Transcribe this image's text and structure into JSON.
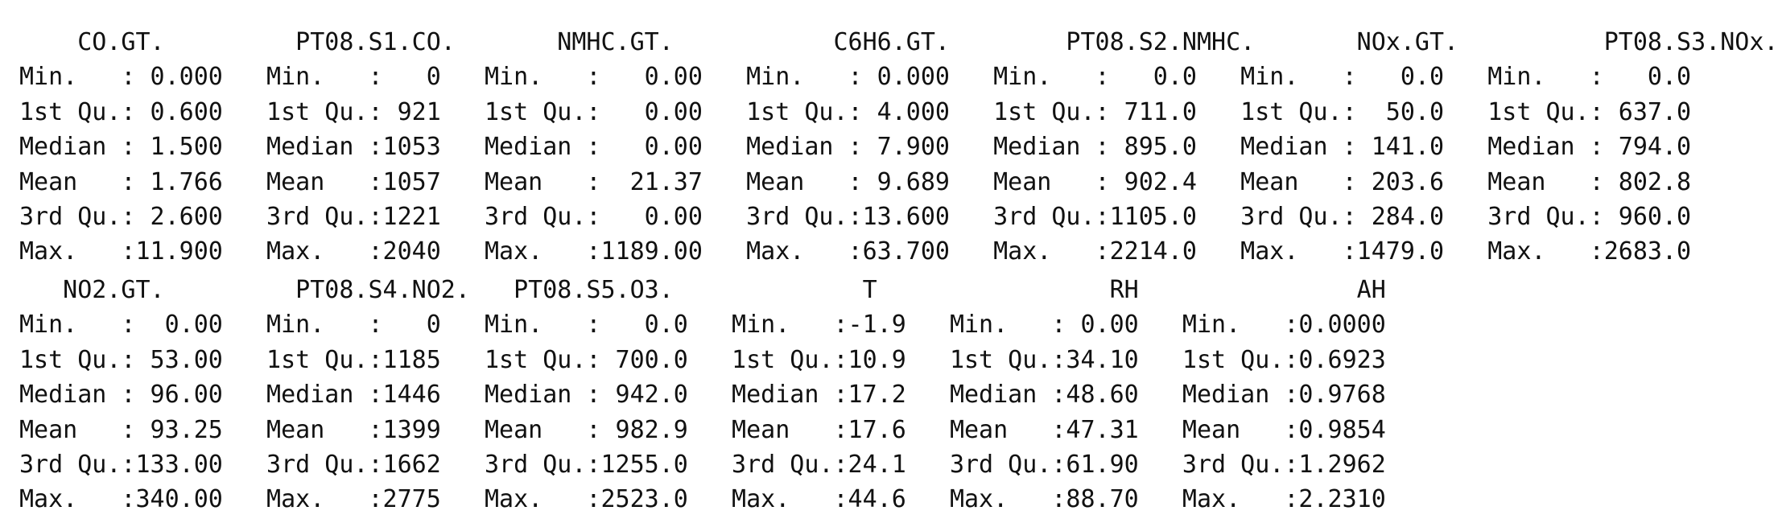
{
  "summary_output": {
    "block1": [
      "    CO.GT.         PT08.S1.CO.       NMHC.GT.           C6H6.GT.        PT08.S2.NMHC.       NOx.GT.          PT08.S3.NOx.",
      "Min.   : 0.000   Min.   :   0   Min.   :   0.00   Min.   : 0.000   Min.   :   0.0   Min.   :   0.0   Min.   :   0.0",
      "1st Qu.: 0.600   1st Qu.: 921   1st Qu.:   0.00   1st Qu.: 4.000   1st Qu.: 711.0   1st Qu.:  50.0   1st Qu.: 637.0",
      "Median : 1.500   Median :1053   Median :   0.00   Median : 7.900   Median : 895.0   Median : 141.0   Median : 794.0",
      "Mean   : 1.766   Mean   :1057   Mean   :  21.37   Mean   : 9.689   Mean   : 902.4   Mean   : 203.6   Mean   : 802.8",
      "3rd Qu.: 2.600   3rd Qu.:1221   3rd Qu.:   0.00   3rd Qu.:13.600   3rd Qu.:1105.0   3rd Qu.: 284.0   3rd Qu.: 960.0",
      "Max.   :11.900   Max.   :2040   Max.   :1189.00   Max.   :63.700   Max.   :2214.0   Max.   :1479.0   Max.   :2683.0"
    ],
    "block2": [
      "   NO2.GT.         PT08.S4.NO2.   PT08.S5.O3.             T                RH               AH",
      "Min.   :  0.00   Min.   :   0   Min.   :   0.0   Min.   :-1.9   Min.   : 0.00   Min.   :0.0000",
      "1st Qu.: 53.00   1st Qu.:1185   1st Qu.: 700.0   1st Qu.:10.9   1st Qu.:34.10   1st Qu.:0.6923",
      "Median : 96.00   Median :1446   Median : 942.0   Median :17.2   Median :48.60   Median :0.9768",
      "Mean   : 93.25   Mean   :1399   Mean   : 982.9   Mean   :17.6   Mean   :47.31   Mean   :0.9854",
      "3rd Qu.:133.00   3rd Qu.:1662   3rd Qu.:1255.0   3rd Qu.:24.1   3rd Qu.:61.90   3rd Qu.:1.2962",
      "Max.   :340.00   Max.   :2775   Max.   :2523.0   Max.   :44.6   Max.   :88.70   Max.   :2.2310"
    ]
  }
}
